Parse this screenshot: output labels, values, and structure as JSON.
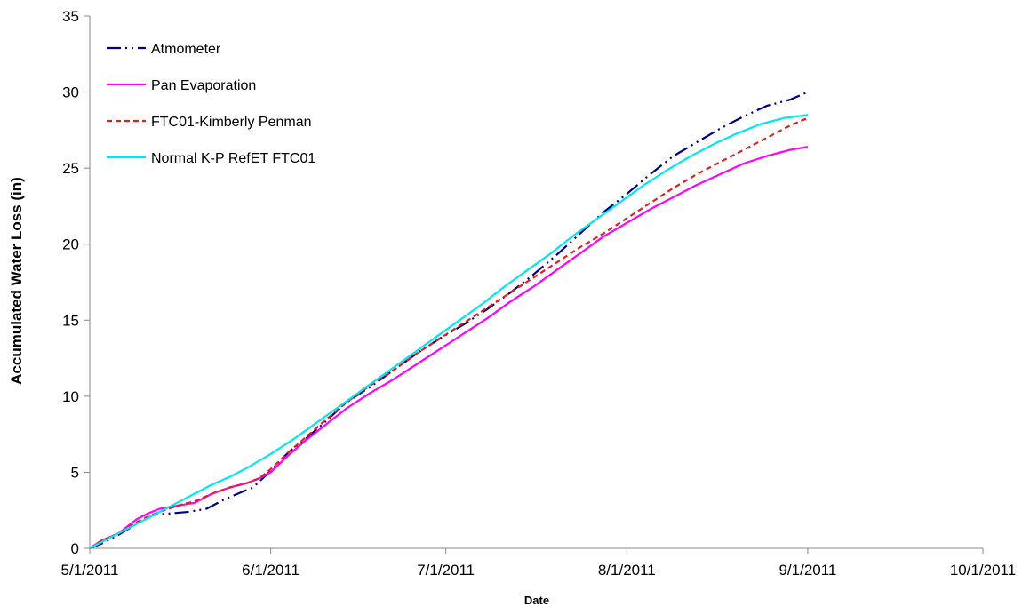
{
  "chart_data": {
    "type": "line",
    "title": "",
    "xlabel": "Date",
    "ylabel": "Accumulated Water Loss (in)",
    "x_tick_labels": [
      "5/1/2011",
      "6/1/2011",
      "7/1/2011",
      "8/1/2011",
      "9/1/2011",
      "10/1/2011"
    ],
    "x_tick_days": [
      0,
      31,
      61,
      92,
      123,
      153
    ],
    "xlim": [
      0,
      153
    ],
    "ylim": [
      0,
      35
    ],
    "y_ticks": [
      0,
      5,
      10,
      15,
      20,
      25,
      30,
      35
    ],
    "grid": false,
    "legend_position": "top-left",
    "x_unit": "days since 5/1/2011",
    "series": [
      {
        "name": "Atmometer",
        "color": "#000080",
        "dash": "16 5 2 5 2 5",
        "x": [
          0,
          2,
          5,
          8,
          11,
          14,
          17,
          20,
          23,
          26,
          28,
          31,
          34,
          37,
          40,
          44,
          48,
          52,
          56,
          60,
          64,
          68,
          72,
          76,
          80,
          84,
          88,
          92,
          96,
          100,
          104,
          108,
          112,
          116,
          120,
          123
        ],
        "y": [
          0,
          0.3,
          0.9,
          1.6,
          2.2,
          2.3,
          2.4,
          2.6,
          3.2,
          3.7,
          4.0,
          5.1,
          6.3,
          7.2,
          8.2,
          9.6,
          10.6,
          11.7,
          12.8,
          13.8,
          14.7,
          15.7,
          16.8,
          18.0,
          19.3,
          20.7,
          22.1,
          23.3,
          24.6,
          25.8,
          26.7,
          27.6,
          28.4,
          29.1,
          29.5,
          30.0
        ]
      },
      {
        "name": "Pan Evaporation",
        "color": "#ff00ff",
        "dash": "",
        "x": [
          0,
          2,
          5,
          8,
          10,
          12,
          15,
          18,
          21,
          24,
          27,
          29,
          31,
          34,
          37,
          40,
          44,
          48,
          52,
          56,
          60,
          64,
          68,
          72,
          76,
          80,
          84,
          88,
          92,
          96,
          100,
          104,
          108,
          112,
          116,
          120,
          123
        ],
        "y": [
          0,
          0.5,
          1.0,
          1.9,
          2.3,
          2.6,
          2.8,
          3.0,
          3.6,
          4.0,
          4.3,
          4.6,
          5.0,
          6.1,
          7.1,
          8.0,
          9.2,
          10.2,
          11.1,
          12.1,
          13.1,
          14.1,
          15.1,
          16.2,
          17.2,
          18.3,
          19.4,
          20.5,
          21.4,
          22.3,
          23.1,
          23.9,
          24.6,
          25.3,
          25.8,
          26.2,
          26.4
        ]
      },
      {
        "name": "FTC01-Kimberly Penman",
        "color": "#e02020",
        "dash": "6 4",
        "x": [
          0,
          2,
          5,
          8,
          10,
          12,
          15,
          18,
          21,
          24,
          27,
          29,
          31,
          34,
          37,
          40,
          44,
          48,
          52,
          56,
          60,
          64,
          68,
          72,
          76,
          80,
          84,
          88,
          92,
          96,
          100,
          104,
          108,
          112,
          116,
          120,
          123
        ],
        "y": [
          0,
          0.5,
          1.0,
          1.7,
          2.1,
          2.4,
          2.8,
          3.1,
          3.6,
          4.0,
          4.3,
          4.6,
          5.2,
          6.3,
          7.3,
          8.3,
          9.6,
          10.7,
          11.7,
          12.8,
          13.8,
          14.8,
          15.8,
          16.8,
          17.8,
          18.8,
          19.8,
          20.7,
          21.7,
          22.7,
          23.7,
          24.6,
          25.4,
          26.2,
          27.0,
          27.8,
          28.3
        ]
      },
      {
        "name": "Normal K-P RefET FTC01",
        "color": "#00e5f0",
        "dash": "",
        "x": [
          0,
          3,
          6,
          9,
          12,
          15,
          18,
          21,
          24,
          27,
          31,
          35,
          39,
          43,
          47,
          51,
          55,
          59,
          63,
          67,
          71,
          75,
          79,
          83,
          87,
          91,
          95,
          99,
          103,
          107,
          111,
          115,
          119,
          123
        ],
        "y": [
          0,
          0.6,
          1.2,
          1.8,
          2.4,
          3.0,
          3.6,
          4.2,
          4.7,
          5.3,
          6.2,
          7.2,
          8.3,
          9.4,
          10.5,
          11.6,
          12.7,
          13.8,
          14.9,
          16.0,
          17.2,
          18.3,
          19.4,
          20.6,
          21.7,
          22.8,
          23.9,
          24.9,
          25.8,
          26.6,
          27.3,
          27.9,
          28.3,
          28.5
        ]
      }
    ]
  }
}
